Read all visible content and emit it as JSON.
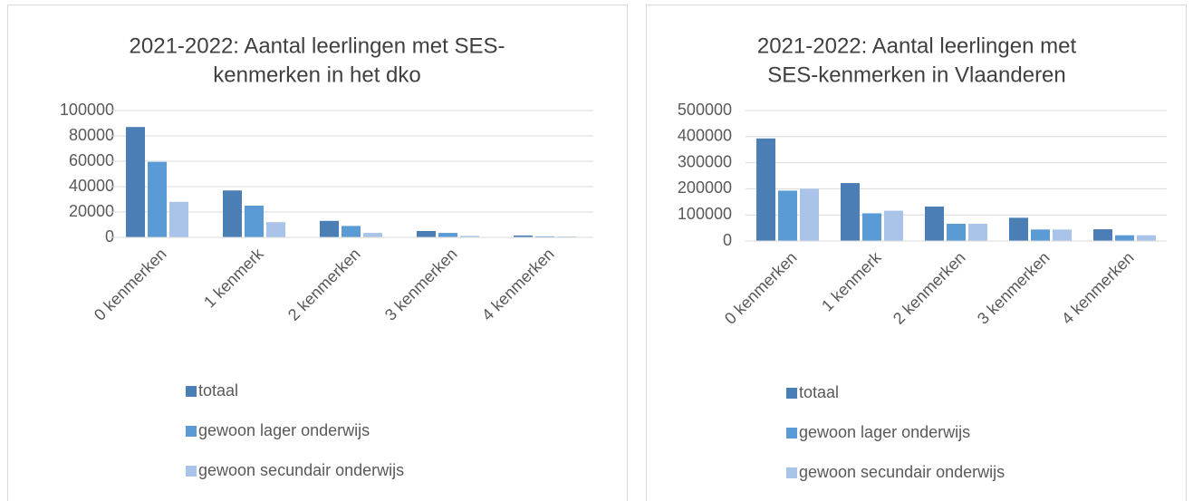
{
  "chart_data": [
    {
      "type": "bar",
      "title": [
        "2021-2022: Aantal leerlingen met SES-",
        "kenmerken in het dko"
      ],
      "categories": [
        "0 kenmerken",
        "1 kenmerk",
        "2 kenmerken",
        "3 kenmerken",
        "4 kenmerken"
      ],
      "series": [
        {
          "name": "totaal",
          "color": "#4a7eb5",
          "values": [
            87000,
            37000,
            13000,
            5000,
            1500
          ]
        },
        {
          "name": "gewoon lager onderwijs",
          "color": "#5b9bd5",
          "values": [
            59500,
            25000,
            9000,
            3500,
            800
          ]
        },
        {
          "name": "gewoon secundair onderwijs",
          "color": "#a9c4e8",
          "values": [
            28000,
            12000,
            3500,
            1200,
            700
          ]
        }
      ],
      "ylim": [
        0,
        100000
      ],
      "yticks": [
        0,
        20000,
        40000,
        60000,
        80000,
        100000
      ],
      "grid": true,
      "legend": "bottom"
    },
    {
      "type": "bar",
      "title": [
        "2021-2022: Aantal leerlingen met",
        "SES-kenmerken in Vlaanderen"
      ],
      "categories": [
        "0 kenmerken",
        "1 kenmerk",
        "2 kenmerken",
        "3 kenmerken",
        "4 kenmerken"
      ],
      "series": [
        {
          "name": "totaal",
          "color": "#4a7eb5",
          "values": [
            393000,
            222000,
            132000,
            89000,
            45000
          ]
        },
        {
          "name": "gewoon lager onderwijs",
          "color": "#5b9bd5",
          "values": [
            193000,
            106000,
            66000,
            44000,
            22000
          ]
        },
        {
          "name": "gewoon secundair onderwijs",
          "color": "#a9c4e8",
          "values": [
            200000,
            116000,
            66000,
            44000,
            22000
          ]
        }
      ],
      "ylim": [
        0,
        500000
      ],
      "yticks": [
        0,
        100000,
        200000,
        300000,
        400000,
        500000
      ],
      "grid": true,
      "legend": "bottom"
    }
  ]
}
